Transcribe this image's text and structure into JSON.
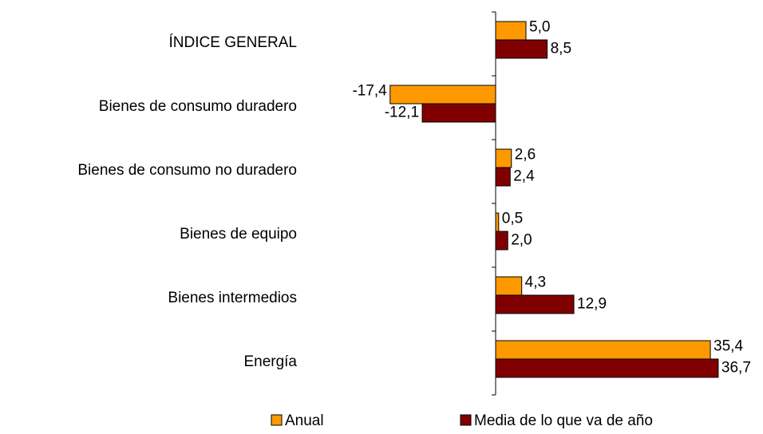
{
  "chart_data": {
    "type": "bar",
    "orientation": "horizontal",
    "categories": [
      "ÍNDICE GENERAL",
      "Bienes de consumo duradero",
      "Bienes de consumo no duradero",
      "Bienes de equipo",
      "Bienes intermedios",
      "Energía"
    ],
    "series": [
      {
        "name": "Anual",
        "color": "#ff9900",
        "values": [
          5.0,
          -17.4,
          2.6,
          0.5,
          4.3,
          35.4
        ],
        "value_labels": [
          "5,0",
          "-17,4",
          "2,6",
          "0,5",
          "4,3",
          "35,4"
        ]
      },
      {
        "name": "Media de lo que va de año",
        "color": "#800000",
        "values": [
          8.5,
          -12.1,
          2.4,
          2.0,
          12.9,
          36.7
        ],
        "value_labels": [
          "8,5",
          "-12,1",
          "2,4",
          "2,0",
          "12,9",
          "36,7"
        ]
      }
    ],
    "legend": "bottom"
  }
}
